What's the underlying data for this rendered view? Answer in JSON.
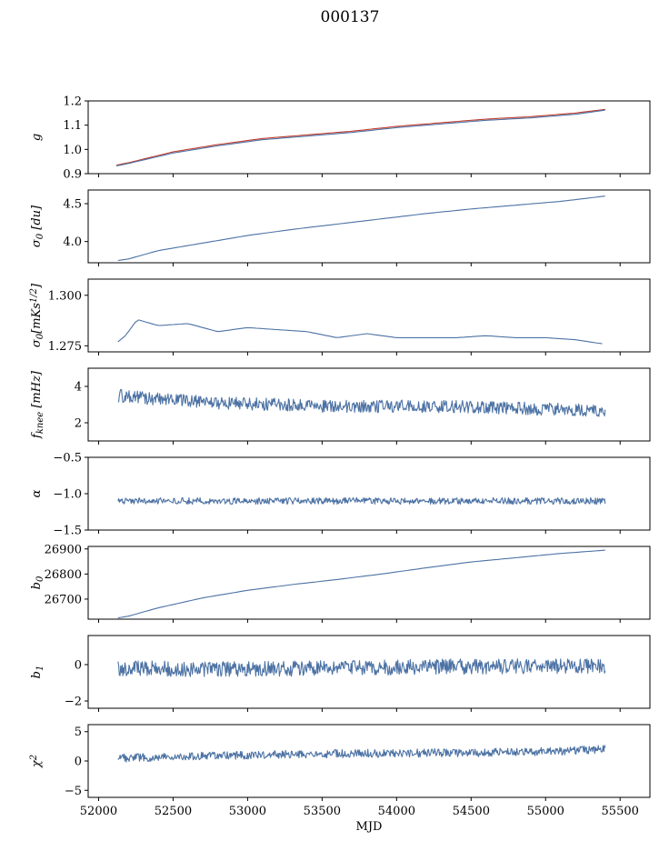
{
  "figure_title": "000137",
  "chart_data": [
    {
      "type": "line",
      "ylabel": "g",
      "ylim": [
        0.9,
        1.2
      ],
      "yticks": [
        "0.9",
        "1.0",
        "1.1",
        "1.2"
      ],
      "series": [
        {
          "color": "#c0392b",
          "style": "markers",
          "x": [
            52120,
            52200,
            52500,
            52800,
            53100,
            53400,
            53700,
            54000,
            54300,
            54600,
            54900,
            55200,
            55400
          ],
          "y": [
            0.935,
            0.945,
            0.99,
            1.02,
            1.045,
            1.06,
            1.075,
            1.095,
            1.11,
            1.125,
            1.135,
            1.15,
            1.165
          ]
        },
        {
          "color": "#4c72a4",
          "x": [
            52120,
            52200,
            52500,
            52800,
            53100,
            53400,
            53700,
            54000,
            54300,
            54600,
            54900,
            55200,
            55400
          ],
          "y": [
            0.932,
            0.942,
            0.985,
            1.015,
            1.04,
            1.055,
            1.07,
            1.09,
            1.105,
            1.12,
            1.13,
            1.145,
            1.162
          ]
        }
      ]
    },
    {
      "type": "line",
      "ylabel": "σ0 [du]",
      "ylim": [
        3.72,
        4.68
      ],
      "yticks": [
        "4.0",
        "4.5"
      ],
      "series": [
        {
          "color": "#4c72a4",
          "x": [
            52130,
            52200,
            52400,
            52700,
            53000,
            53300,
            53600,
            53900,
            54200,
            54500,
            54800,
            55100,
            55400
          ],
          "y": [
            3.75,
            3.77,
            3.88,
            3.98,
            4.08,
            4.16,
            4.23,
            4.3,
            4.37,
            4.43,
            4.48,
            4.53,
            4.6
          ]
        }
      ]
    },
    {
      "type": "line",
      "ylabel": "σ0[mKs^1/2]",
      "ylim": [
        1.272,
        1.308
      ],
      "yticks": [
        "1.275",
        "1.300"
      ],
      "series": [
        {
          "color": "#4c72a4",
          "x": [
            52130,
            52180,
            52260,
            52400,
            52600,
            52800,
            53000,
            53200,
            53400,
            53600,
            53800,
            54000,
            54200,
            54400,
            54600,
            54800,
            55000,
            55200,
            55380
          ],
          "y": [
            1.277,
            1.28,
            1.288,
            1.285,
            1.286,
            1.282,
            1.284,
            1.283,
            1.282,
            1.279,
            1.281,
            1.279,
            1.279,
            1.279,
            1.28,
            1.279,
            1.279,
            1.278,
            1.276
          ]
        }
      ]
    },
    {
      "type": "line",
      "ylabel": "fknee [mHz]",
      "ylim": [
        1.0,
        5.0
      ],
      "yticks": [
        "2",
        "4"
      ],
      "series": [
        {
          "color": "#4c72a4",
          "noise": 0.35,
          "x": [
            52130,
            52400,
            52800,
            53200,
            53600,
            54000,
            54400,
            54800,
            55200,
            55400
          ],
          "y": [
            3.5,
            3.3,
            3.1,
            3.0,
            2.9,
            2.9,
            2.9,
            2.8,
            2.7,
            2.6
          ]
        }
      ]
    },
    {
      "type": "line",
      "ylabel": "α",
      "ylim": [
        -1.5,
        -0.5
      ],
      "yticks": [
        "−1.5",
        "−1.0",
        "−0.5"
      ],
      "series": [
        {
          "color": "#4c72a4",
          "noise": 0.045,
          "x": [
            52130,
            52800,
            53600,
            54400,
            55400
          ],
          "y": [
            -1.1,
            -1.1,
            -1.1,
            -1.1,
            -1.1
          ]
        }
      ]
    },
    {
      "type": "line",
      "ylabel": "b0",
      "ylim": [
        26620,
        26910
      ],
      "yticks": [
        "26700",
        "26800",
        "26900"
      ],
      "series": [
        {
          "color": "#4c72a4",
          "x": [
            52130,
            52200,
            52400,
            52700,
            53000,
            53300,
            53600,
            53900,
            54200,
            54500,
            54800,
            55100,
            55400
          ],
          "y": [
            26625,
            26632,
            26665,
            26705,
            26735,
            26758,
            26778,
            26800,
            26825,
            26848,
            26865,
            26882,
            26895
          ]
        }
      ]
    },
    {
      "type": "line",
      "ylabel": "b1",
      "ylim": [
        -2.4,
        1.6
      ],
      "yticks": [
        "−2",
        "0"
      ],
      "series": [
        {
          "color": "#4c72a4",
          "noise": 0.42,
          "x": [
            52130,
            52800,
            53600,
            54400,
            55400
          ],
          "y": [
            -0.2,
            -0.25,
            -0.2,
            -0.1,
            -0.1
          ]
        }
      ]
    },
    {
      "type": "line",
      "ylabel": "χ2",
      "ylim": [
        -6.2,
        6.2
      ],
      "yticks": [
        "−5",
        "0",
        "5"
      ],
      "xlabel": "MJD",
      "xticks": [
        "52000",
        "52500",
        "53000",
        "53500",
        "54000",
        "54500",
        "55000",
        "55500"
      ],
      "series": [
        {
          "color": "#4c72a4",
          "noise": 0.7,
          "x": [
            52130,
            52600,
            53200,
            53800,
            54400,
            55000,
            55400
          ],
          "y": [
            0.5,
            0.8,
            1.1,
            1.3,
            1.4,
            1.6,
            2.0
          ]
        }
      ]
    }
  ],
  "xlim": [
    51930,
    55700
  ]
}
